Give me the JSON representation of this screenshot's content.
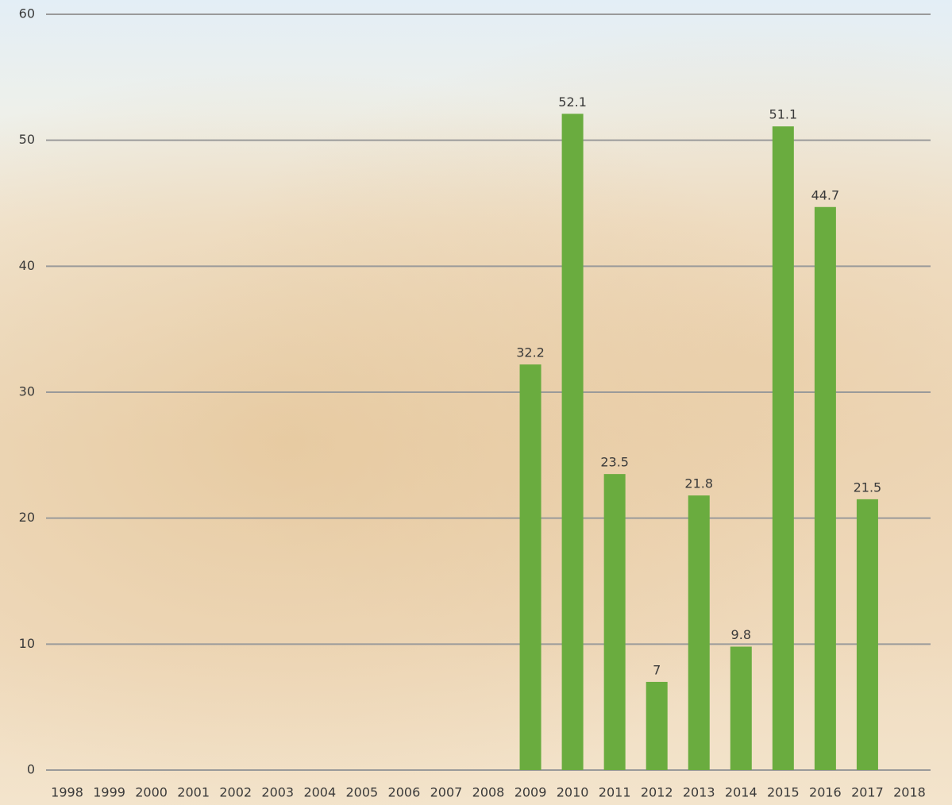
{
  "chart_data": {
    "type": "bar",
    "categories": [
      "1998",
      "1999",
      "2000",
      "2001",
      "2002",
      "2003",
      "2004",
      "2005",
      "2006",
      "2007",
      "2008",
      "2009",
      "2010",
      "2011",
      "2012",
      "2013",
      "2014",
      "2015",
      "2016",
      "2017",
      "2018"
    ],
    "values": [
      null,
      null,
      null,
      null,
      null,
      null,
      null,
      null,
      null,
      null,
      null,
      32.2,
      52.1,
      23.5,
      7,
      21.8,
      9.8,
      51.1,
      44.7,
      21.5,
      null
    ],
    "color": "#6aac3f",
    "ylim": [
      0,
      60
    ],
    "yticks": [
      0,
      10,
      20,
      30,
      40,
      50,
      60
    ],
    "grid": true,
    "data_labels": true
  }
}
